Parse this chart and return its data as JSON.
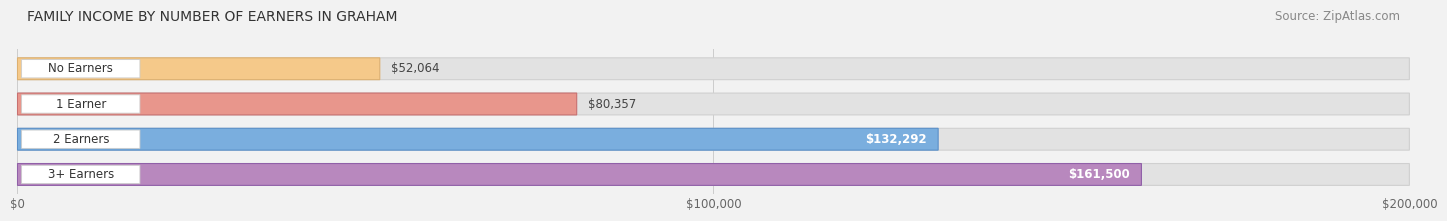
{
  "title": "FAMILY INCOME BY NUMBER OF EARNERS IN GRAHAM",
  "source": "Source: ZipAtlas.com",
  "categories": [
    "No Earners",
    "1 Earner",
    "2 Earners",
    "3+ Earners"
  ],
  "values": [
    52064,
    80357,
    132292,
    161500
  ],
  "labels": [
    "$52,064",
    "$80,357",
    "$132,292",
    "$161,500"
  ],
  "bar_colors": [
    "#f5c98a",
    "#e8968c",
    "#7aaede",
    "#b888be"
  ],
  "bar_edge_colors": [
    "#ddb070",
    "#c87070",
    "#5a8fc8",
    "#9060a8"
  ],
  "bg_color": "#f2f2f2",
  "bar_bg_color": "#e2e2e2",
  "bar_bg_edge": "#d0d0d0",
  "xlim_max": 200000,
  "xticks": [
    0,
    100000,
    200000
  ],
  "xticklabels": [
    "$0",
    "$100,000",
    "$200,000"
  ],
  "title_fontsize": 10,
  "source_fontsize": 8.5,
  "label_fontsize": 8.5,
  "tick_fontsize": 8.5,
  "category_fontsize": 8.5
}
